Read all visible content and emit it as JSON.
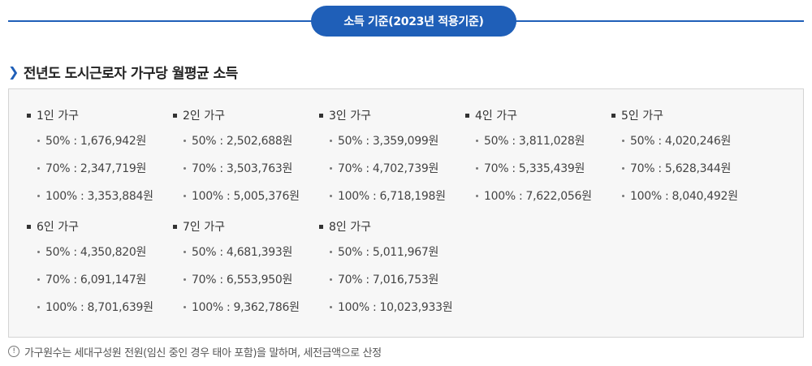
{
  "header": {
    "title": "소득 기준(2023년 적용기준)"
  },
  "section": {
    "title": "전년도 도시근로자 가구당 월평균 소득"
  },
  "groups": [
    {
      "label": "1인 가구",
      "rows": [
        "50% : 1,676,942원",
        "70% : 2,347,719원",
        "100% : 3,353,884원"
      ]
    },
    {
      "label": "2인 가구",
      "rows": [
        "50% : 2,502,688원",
        "70% : 3,503,763원",
        "100% : 5,005,376원"
      ]
    },
    {
      "label": "3인 가구",
      "rows": [
        "50% : 3,359,099원",
        "70% : 4,702,739원",
        "100% : 6,718,198원"
      ]
    },
    {
      "label": "4인 가구",
      "rows": [
        "50% : 3,811,028원",
        "70% : 5,335,439원",
        "100% : 7,622,056원"
      ]
    },
    {
      "label": "5인 가구",
      "rows": [
        "50% : 4,020,246원",
        "70% : 5,628,344원",
        "100% : 8,040,492원"
      ]
    },
    {
      "label": "6인 가구",
      "rows": [
        "50% : 4,350,820원",
        "70% : 6,091,147원",
        "100% : 8,701,639원"
      ]
    },
    {
      "label": "7인 가구",
      "rows": [
        "50% : 4,681,393원",
        "70% : 6,553,950원",
        "100% : 9,362,786원"
      ]
    },
    {
      "label": "8인 가구",
      "rows": [
        "50% : 5,011,967원",
        "70% : 7,016,753원",
        "100% : 10,023,933원"
      ]
    }
  ],
  "note": {
    "icon": "info-circle-icon",
    "text": "가구원수는 세대구성원 전원(임신 중인 경우 태아 포함)을 말하며, 세전금액으로 산정"
  }
}
